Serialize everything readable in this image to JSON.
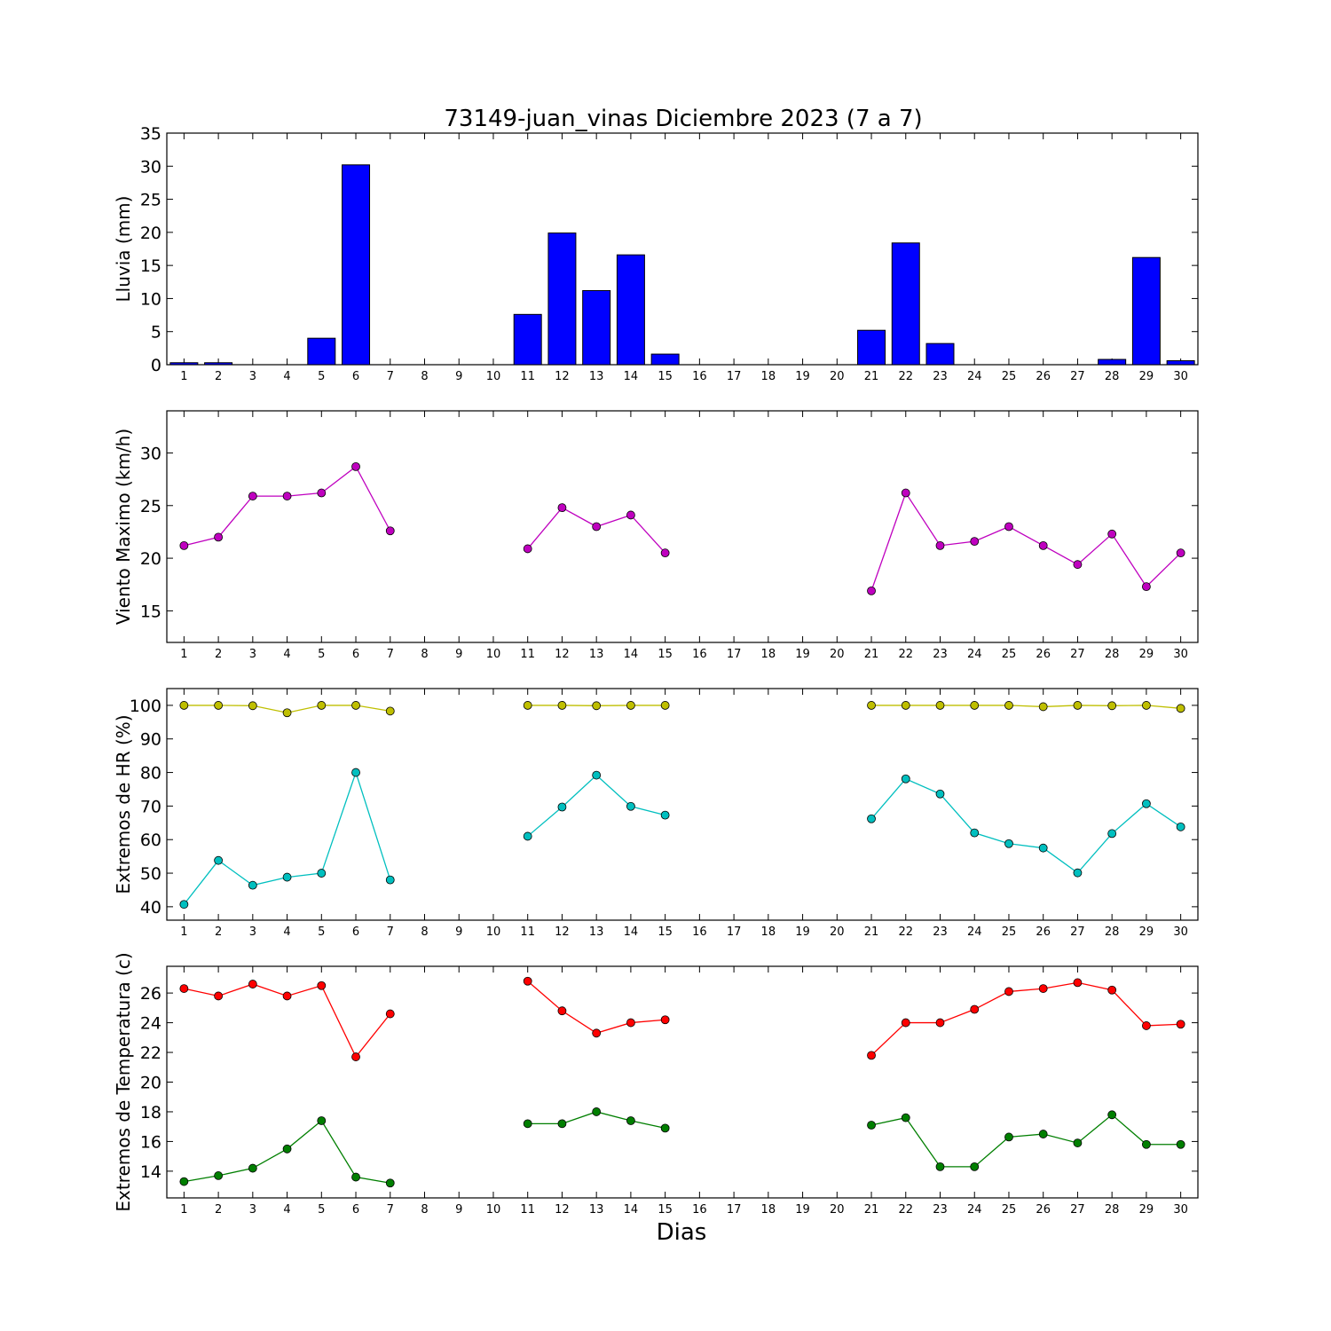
{
  "chart_data": {
    "title": "73149-juan_vinas Diciembre 2023  (7 a 7)",
    "xlabel": "Dias",
    "days": [
      1,
      2,
      3,
      4,
      5,
      6,
      7,
      8,
      9,
      10,
      11,
      12,
      13,
      14,
      15,
      16,
      17,
      18,
      19,
      20,
      21,
      22,
      23,
      24,
      25,
      26,
      27,
      28,
      29,
      30
    ],
    "panels": [
      {
        "id": "rain",
        "type": "bar",
        "ylabel": "Lluvia (mm)",
        "ylim": [
          0,
          35
        ],
        "yticks": [
          0,
          5,
          10,
          15,
          20,
          25,
          30,
          35
        ],
        "series": [
          {
            "color": "#0000ff",
            "values": [
              0.3,
              0.3,
              0,
              0,
              4.0,
              30.2,
              0,
              0,
              0,
              0,
              7.6,
              19.9,
              11.2,
              16.6,
              1.6,
              0,
              0,
              0,
              0,
              0,
              5.2,
              18.4,
              3.2,
              0,
              0,
              0,
              0,
              0.8,
              16.2,
              0.6
            ]
          }
        ]
      },
      {
        "id": "wind",
        "type": "line",
        "ylabel": "Viento Maximo (km/h)",
        "ylim": [
          12,
          34
        ],
        "yticks": [
          15,
          20,
          25,
          30
        ],
        "series": [
          {
            "color": "#bf00bf",
            "values": [
              21.2,
              22.0,
              25.9,
              25.9,
              26.2,
              28.7,
              22.6,
              null,
              null,
              null,
              20.9,
              24.8,
              23.0,
              24.1,
              20.5,
              null,
              null,
              null,
              null,
              null,
              16.9,
              26.2,
              21.2,
              21.6,
              23.0,
              21.2,
              19.4,
              22.3,
              17.3,
              20.5
            ]
          }
        ]
      },
      {
        "id": "humidity",
        "type": "line",
        "ylabel": "Extremos de HR (%)",
        "ylim": [
          36,
          105
        ],
        "yticks": [
          40,
          50,
          60,
          70,
          80,
          90,
          100
        ],
        "series": [
          {
            "color": "#bfbf00",
            "values": [
              100,
              100,
              99.9,
              97.8,
              100,
              100,
              98.3,
              null,
              null,
              null,
              100,
              100,
              99.9,
              100,
              100,
              null,
              null,
              null,
              null,
              null,
              100,
              100,
              100,
              100,
              100,
              99.6,
              100,
              99.9,
              100,
              99.1
            ]
          },
          {
            "color": "#00bfbf",
            "values": [
              40.7,
              53.8,
              46.4,
              48.8,
              50.0,
              80.0,
              48.0,
              null,
              null,
              null,
              61.0,
              69.7,
              79.2,
              69.9,
              67.3,
              null,
              null,
              null,
              null,
              null,
              66.2,
              78.1,
              73.6,
              62.0,
              58.8,
              57.5,
              50.1,
              61.8,
              70.7,
              63.8
            ]
          }
        ]
      },
      {
        "id": "temperature",
        "type": "line",
        "ylabel": "Extremos de Temperatura (c)",
        "ylim": [
          12.2,
          27.8
        ],
        "yticks": [
          14,
          16,
          18,
          20,
          22,
          24,
          26
        ],
        "series": [
          {
            "color": "#ff0000",
            "values": [
              26.3,
              25.8,
              26.6,
              25.8,
              26.5,
              21.7,
              24.6,
              null,
              null,
              null,
              26.8,
              24.8,
              23.3,
              24.0,
              24.2,
              null,
              null,
              null,
              null,
              null,
              21.8,
              24.0,
              24.0,
              24.9,
              26.1,
              26.3,
              26.7,
              26.2,
              23.8,
              23.9
            ]
          },
          {
            "color": "#007f00",
            "values": [
              13.3,
              13.7,
              14.2,
              15.5,
              17.4,
              13.6,
              13.2,
              null,
              null,
              null,
              17.2,
              17.2,
              18.0,
              17.4,
              16.9,
              null,
              null,
              null,
              null,
              null,
              17.1,
              17.6,
              14.3,
              14.3,
              16.3,
              16.5,
              15.9,
              17.8,
              15.8,
              15.8
            ]
          }
        ]
      }
    ]
  }
}
